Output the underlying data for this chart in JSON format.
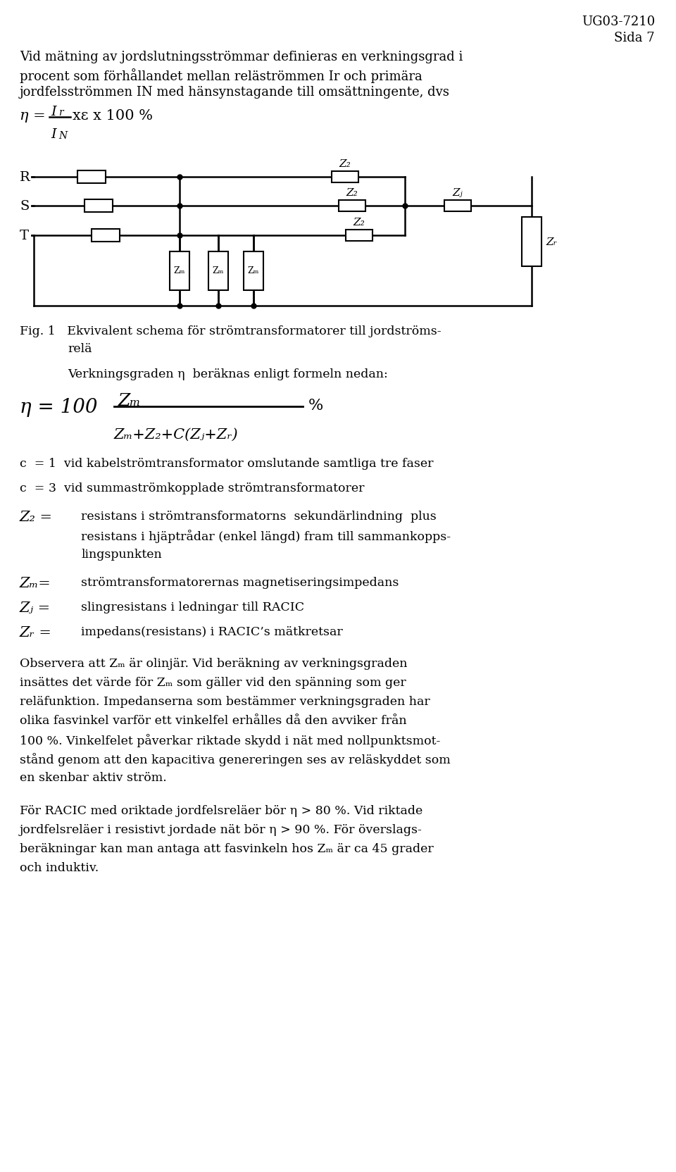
{
  "background_color": "#ffffff",
  "header_line1": "UG03-7210",
  "header_line2": "Sida 7",
  "intro_line1": "Vid mätning av jordslutningsströmmar definieras en verkningsgrad i",
  "intro_line2": "procent som förhållandet mellan reläströmmen Ir och primära",
  "intro_line3": "jordfelsströmmen IN med hänsynstagande till omsättningente, dvs",
  "fig_caption1": "Fig. 1   Ekvivalent schema för strömtransformatorer till jordströms-",
  "fig_caption2": "         relä",
  "verkningsgraden": "Verkningsgraden η  beräknas enligt formeln nedan:",
  "c1": "c  = 1  vid kabelströmtransformator omslutande samtliga tre faser",
  "c3": "c  = 3  vid summaströmkopplade strömtransformatorer",
  "z2_def1": "resistans i strömtransformatorns  sekundärlindning  plus",
  "z2_def2": "resistans i hjäptrådar (enkel längd) fram till sammankopps-",
  "z2_def3": "lingspunkten",
  "zm_def": "strömtransformatorernas magnetiseringsimpedans",
  "zl_def": "slingresistans i ledningar till RACIC",
  "zr_def": "impedans(resistans) i RACIC’s mätkretsar",
  "obs_text": "Observera att Zm är olinjär. Vid beräkning av verkningsgraden\ninsättes det värde för Zm som gäller vid den spänning som ger\nreläfunktion. Impedanserna som bestämmer verkningsgraden har\nolika fasvinkel varför ett vinkelfel erhålles då den avviker från\n100 %. Vinkelfelet påverkar riktade skydd i nät med nollpunktsmot-\nstånd genom att den kapacitiva genereringen ses av reläskyddet som\nen skenbar aktiv ström.",
  "racic_text": "För RACIC med oriktade jordfelsreläer bör η > 80 %. Vid riktade\njordfelsreläer i resistivt jordade nät bör η > 90 %. För överslags-\nberäkningar kan man antaga att fasvinkeln hos Zm är ca 45 grader\noch induktiv."
}
